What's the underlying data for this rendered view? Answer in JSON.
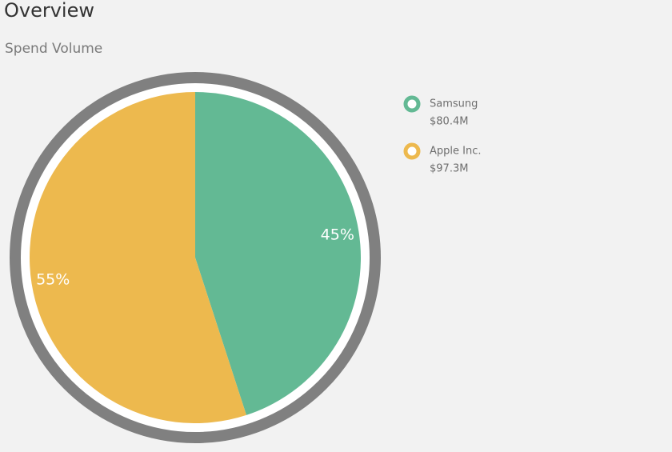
{
  "header": {
    "title": "Overview",
    "subtitle": "Spend Volume"
  },
  "chart_data": {
    "type": "pie",
    "categories": [
      "Samsung",
      "Apple Inc."
    ],
    "values": [
      45,
      55
    ],
    "value_labels": [
      "45%",
      "55%"
    ],
    "colors": [
      "#63b994",
      "#edb94e"
    ],
    "legend_totals": [
      "$80.4M",
      "$97.3M"
    ]
  }
}
